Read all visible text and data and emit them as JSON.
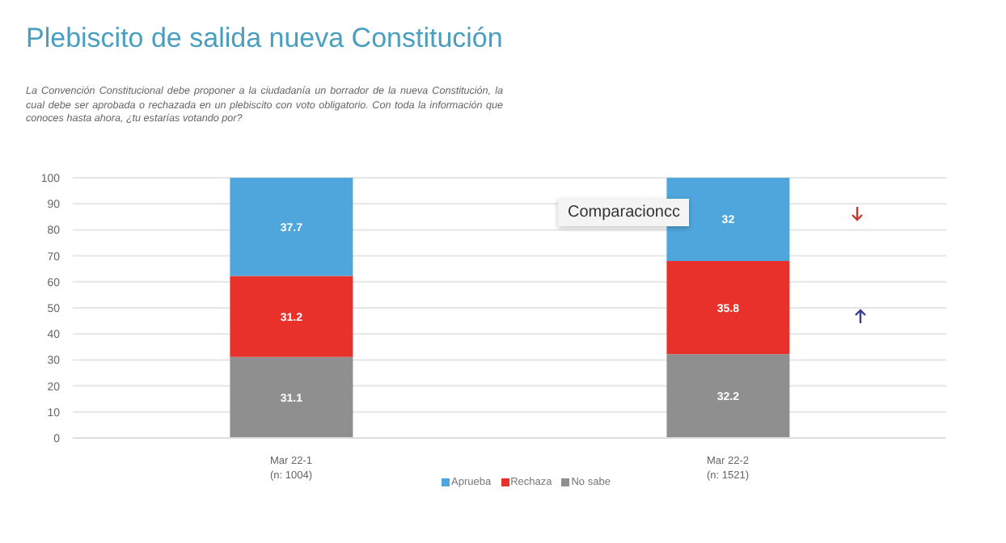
{
  "chart_data": {
    "type": "bar",
    "title": "Plebiscito de salida nueva Constitución",
    "subtitle": "La Convención Constitucional debe proponer a la ciudadanía un borrador de la nueva Constitución, la cual debe ser aprobada o rechazada en un plebiscito con voto obligatorio. Con toda la información que conoces hasta ahora, ¿tu estarías votando por?",
    "annotations": [
      "Comparacioncc"
    ],
    "categories": [
      "Mar 22-1\n(n: 1004)",
      "Mar 22-2\n(n: 1521)"
    ],
    "series": [
      {
        "name": "No sabe",
        "color": "#8f8f8f",
        "values": [
          31.1,
          32.2
        ]
      },
      {
        "name": "Rechaza",
        "color": "#e8312a",
        "values": [
          31.2,
          35.8
        ]
      },
      {
        "name": "Aprueba",
        "color": "#4ea6dc",
        "values": [
          37.7,
          32
        ]
      }
    ],
    "stacked": true,
    "ylim": [
      0,
      100
    ],
    "yticks": [
      0,
      10,
      20,
      30,
      40,
      50,
      60,
      70,
      80,
      90,
      100
    ],
    "grid": "y",
    "legend": "bottom",
    "data_labels": true
  }
}
